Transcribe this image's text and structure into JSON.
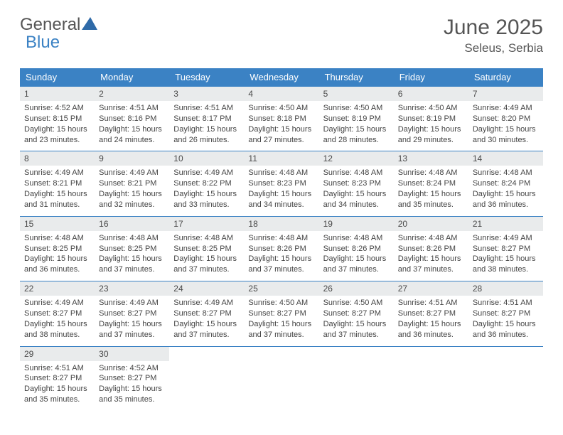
{
  "logo": {
    "general": "General",
    "blue": "Blue",
    "icon_color": "#2f6aa8"
  },
  "title": "June 2025",
  "subtitle": "Seleus, Serbia",
  "colors": {
    "header_bg": "#3b82c4",
    "header_text": "#ffffff",
    "cell_border": "#3b82c4",
    "daynum_bg": "#e9ebec",
    "text": "#444444",
    "title_color": "#555555"
  },
  "day_headers": [
    "Sunday",
    "Monday",
    "Tuesday",
    "Wednesday",
    "Thursday",
    "Friday",
    "Saturday"
  ],
  "weeks": [
    [
      {
        "n": "1",
        "sunrise": "4:52 AM",
        "sunset": "8:15 PM",
        "daylight": "15 hours and 23 minutes."
      },
      {
        "n": "2",
        "sunrise": "4:51 AM",
        "sunset": "8:16 PM",
        "daylight": "15 hours and 24 minutes."
      },
      {
        "n": "3",
        "sunrise": "4:51 AM",
        "sunset": "8:17 PM",
        "daylight": "15 hours and 26 minutes."
      },
      {
        "n": "4",
        "sunrise": "4:50 AM",
        "sunset": "8:18 PM",
        "daylight": "15 hours and 27 minutes."
      },
      {
        "n": "5",
        "sunrise": "4:50 AM",
        "sunset": "8:19 PM",
        "daylight": "15 hours and 28 minutes."
      },
      {
        "n": "6",
        "sunrise": "4:50 AM",
        "sunset": "8:19 PM",
        "daylight": "15 hours and 29 minutes."
      },
      {
        "n": "7",
        "sunrise": "4:49 AM",
        "sunset": "8:20 PM",
        "daylight": "15 hours and 30 minutes."
      }
    ],
    [
      {
        "n": "8",
        "sunrise": "4:49 AM",
        "sunset": "8:21 PM",
        "daylight": "15 hours and 31 minutes."
      },
      {
        "n": "9",
        "sunrise": "4:49 AM",
        "sunset": "8:21 PM",
        "daylight": "15 hours and 32 minutes."
      },
      {
        "n": "10",
        "sunrise": "4:49 AM",
        "sunset": "8:22 PM",
        "daylight": "15 hours and 33 minutes."
      },
      {
        "n": "11",
        "sunrise": "4:48 AM",
        "sunset": "8:23 PM",
        "daylight": "15 hours and 34 minutes."
      },
      {
        "n": "12",
        "sunrise": "4:48 AM",
        "sunset": "8:23 PM",
        "daylight": "15 hours and 34 minutes."
      },
      {
        "n": "13",
        "sunrise": "4:48 AM",
        "sunset": "8:24 PM",
        "daylight": "15 hours and 35 minutes."
      },
      {
        "n": "14",
        "sunrise": "4:48 AM",
        "sunset": "8:24 PM",
        "daylight": "15 hours and 36 minutes."
      }
    ],
    [
      {
        "n": "15",
        "sunrise": "4:48 AM",
        "sunset": "8:25 PM",
        "daylight": "15 hours and 36 minutes."
      },
      {
        "n": "16",
        "sunrise": "4:48 AM",
        "sunset": "8:25 PM",
        "daylight": "15 hours and 37 minutes."
      },
      {
        "n": "17",
        "sunrise": "4:48 AM",
        "sunset": "8:25 PM",
        "daylight": "15 hours and 37 minutes."
      },
      {
        "n": "18",
        "sunrise": "4:48 AM",
        "sunset": "8:26 PM",
        "daylight": "15 hours and 37 minutes."
      },
      {
        "n": "19",
        "sunrise": "4:48 AM",
        "sunset": "8:26 PM",
        "daylight": "15 hours and 37 minutes."
      },
      {
        "n": "20",
        "sunrise": "4:48 AM",
        "sunset": "8:26 PM",
        "daylight": "15 hours and 37 minutes."
      },
      {
        "n": "21",
        "sunrise": "4:49 AM",
        "sunset": "8:27 PM",
        "daylight": "15 hours and 38 minutes."
      }
    ],
    [
      {
        "n": "22",
        "sunrise": "4:49 AM",
        "sunset": "8:27 PM",
        "daylight": "15 hours and 38 minutes."
      },
      {
        "n": "23",
        "sunrise": "4:49 AM",
        "sunset": "8:27 PM",
        "daylight": "15 hours and 37 minutes."
      },
      {
        "n": "24",
        "sunrise": "4:49 AM",
        "sunset": "8:27 PM",
        "daylight": "15 hours and 37 minutes."
      },
      {
        "n": "25",
        "sunrise": "4:50 AM",
        "sunset": "8:27 PM",
        "daylight": "15 hours and 37 minutes."
      },
      {
        "n": "26",
        "sunrise": "4:50 AM",
        "sunset": "8:27 PM",
        "daylight": "15 hours and 37 minutes."
      },
      {
        "n": "27",
        "sunrise": "4:51 AM",
        "sunset": "8:27 PM",
        "daylight": "15 hours and 36 minutes."
      },
      {
        "n": "28",
        "sunrise": "4:51 AM",
        "sunset": "8:27 PM",
        "daylight": "15 hours and 36 minutes."
      }
    ],
    [
      {
        "n": "29",
        "sunrise": "4:51 AM",
        "sunset": "8:27 PM",
        "daylight": "15 hours and 35 minutes."
      },
      {
        "n": "30",
        "sunrise": "4:52 AM",
        "sunset": "8:27 PM",
        "daylight": "15 hours and 35 minutes."
      },
      null,
      null,
      null,
      null,
      null
    ]
  ],
  "labels": {
    "sunrise": "Sunrise:",
    "sunset": "Sunset:",
    "daylight": "Daylight:"
  }
}
